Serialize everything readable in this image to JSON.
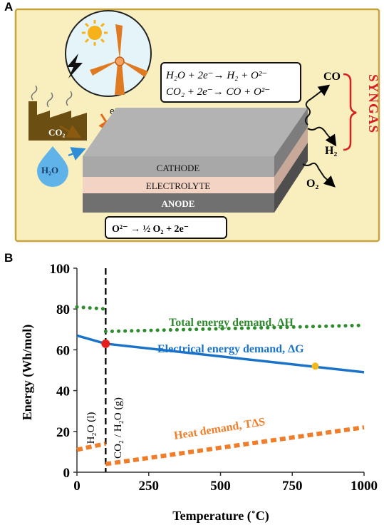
{
  "panel_a": {
    "label": "A",
    "reactions_cathode": [
      "H₂O  + 2e⁻→ H₂ + O²⁻",
      "CO₂  + 2e⁻→ CO + O²⁻"
    ],
    "reaction_anode": "O²⁻ → ½ O₂ + 2e⁻",
    "layers": {
      "cathode": "CATHODE",
      "electrolyte": "ELECTROLYTE",
      "anode": "ANODE"
    },
    "inputs": {
      "co2": "CO₂",
      "h2o": "H₂O",
      "electron": "e⁻"
    },
    "outputs": {
      "co": "CO",
      "h2": "H₂",
      "o2": "O₂",
      "syngas": "SYNGAS"
    },
    "colors": {
      "background": "#f9efbe",
      "border": "#c8a33b",
      "syngas": "#d62020",
      "cathode": "#a8a8a8",
      "electrolyte": "#f3d3c3",
      "anode": "#707070",
      "factory": "#6b4e12",
      "water": "#5fb3e8"
    }
  },
  "panel_b": {
    "label": "B",
    "chart_data": {
      "type": "line",
      "xlabel": "Temperature (˚C)",
      "ylabel": "Energy (Wh/mol)",
      "xlim": [
        0,
        1000
      ],
      "ylim": [
        0,
        100
      ],
      "xticks": [
        0,
        250,
        500,
        750,
        1000
      ],
      "yticks": [
        0,
        20,
        40,
        60,
        80,
        100
      ],
      "phase_boundary_x": 100,
      "phase_labels": [
        "H₂O (l)",
        "CO₂ / H₂O (g)"
      ],
      "series": [
        {
          "name": "Total energy demand, ΔH",
          "style": "dotted",
          "color": "#2e8b2e",
          "segments": [
            {
              "x": [
                0,
                100
              ],
              "y": [
                81,
                80
              ]
            },
            {
              "x": [
                100,
                1000
              ],
              "y": [
                69,
                72
              ]
            }
          ]
        },
        {
          "name": "Electrical energy demand, ΔG",
          "style": "solid",
          "color": "#1a73c8",
          "segments": [
            {
              "x": [
                0,
                100
              ],
              "y": [
                67,
                63
              ]
            },
            {
              "x": [
                100,
                1000
              ],
              "y": [
                63,
                49
              ]
            }
          ]
        },
        {
          "name": "Heat demand, TΔS",
          "style": "dashed",
          "color": "#f07d2a",
          "segments": [
            {
              "x": [
                0,
                100
              ],
              "y": [
                11,
                14
              ]
            },
            {
              "x": [
                100,
                1000
              ],
              "y": [
                4,
                22
              ]
            }
          ]
        }
      ],
      "markers": [
        {
          "x": 100,
          "y": 63,
          "color": "#e8201c"
        },
        {
          "x": 830,
          "y": 52,
          "color": "#f4b91a"
        }
      ]
    }
  }
}
